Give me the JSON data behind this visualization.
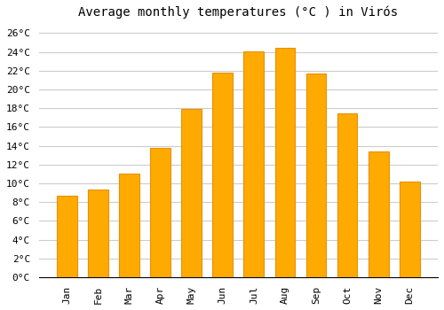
{
  "title": "Average monthly temperatures (°C ) in Virós",
  "months": [
    "Jan",
    "Feb",
    "Mar",
    "Apr",
    "May",
    "Jun",
    "Jul",
    "Aug",
    "Sep",
    "Oct",
    "Nov",
    "Dec"
  ],
  "temperatures": [
    8.7,
    9.3,
    11.0,
    13.8,
    17.9,
    21.8,
    24.1,
    24.4,
    21.7,
    17.5,
    13.4,
    10.2
  ],
  "bar_color": "#FFAA00",
  "bar_edge_color": "#E89000",
  "ylim": [
    0,
    27
  ],
  "yticks": [
    0,
    2,
    4,
    6,
    8,
    10,
    12,
    14,
    16,
    18,
    20,
    22,
    24,
    26
  ],
  "bg_color": "#FFFFFF",
  "grid_color": "#CCCCCC",
  "title_fontsize": 10,
  "tick_fontsize": 8,
  "font_family": "monospace"
}
